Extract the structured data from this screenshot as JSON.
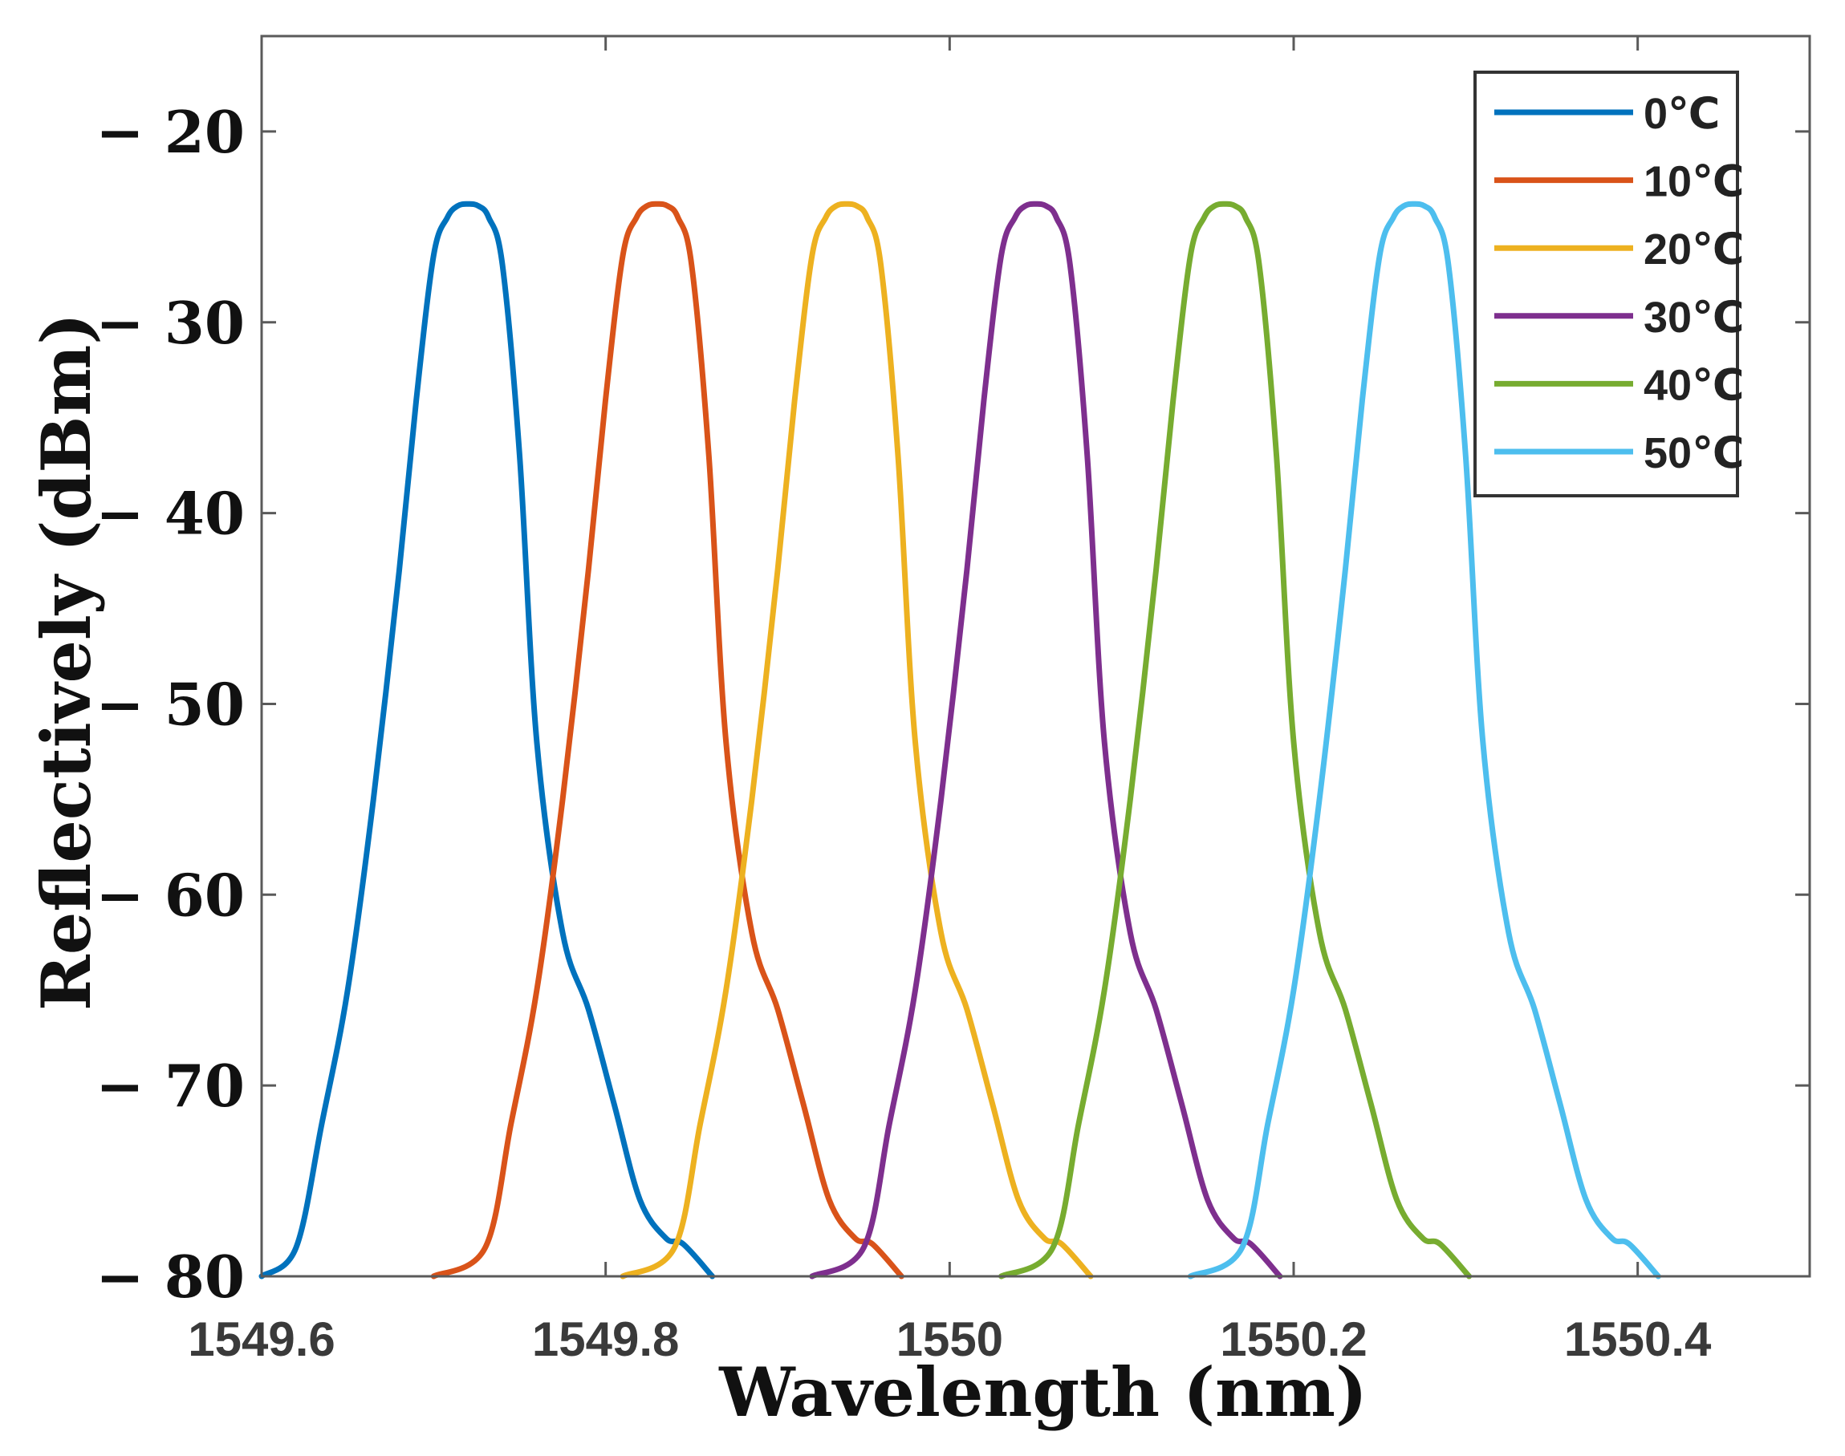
{
  "chart_data": {
    "type": "line",
    "title": "",
    "xlabel": "Wavelength (nm)",
    "ylabel": "Reflectively (dBm)",
    "xlim": [
      1549.6,
      1550.5
    ],
    "ylim": [
      -80,
      -15
    ],
    "xticks": [
      1549.6,
      1549.8,
      1550,
      1550.2,
      1550.4
    ],
    "xtick_labels": [
      "1549.6",
      "1549.8",
      "1550",
      "1550.2",
      "1550.4"
    ],
    "yticks": [
      -20,
      -30,
      -40,
      -50,
      -60,
      -70,
      -80
    ],
    "ytick_labels": [
      "− 20",
      "− 30",
      "− 40",
      "− 50",
      "− 60",
      "− 70",
      "− 80"
    ],
    "grid": false,
    "legend_position": "top-right",
    "peak_dbm": -23.8,
    "series": [
      {
        "name": "0℃",
        "color": "#0072BD",
        "peak_nm": 1549.72,
        "x_start": 1549.6,
        "x_end": 1549.862
      },
      {
        "name": "10℃",
        "color": "#D95319",
        "peak_nm": 1549.83,
        "x_start": 1549.7,
        "x_end": 1549.972
      },
      {
        "name": "20℃",
        "color": "#EDB120",
        "peak_nm": 1549.94,
        "x_start": 1549.81,
        "x_end": 1550.082
      },
      {
        "name": "30℃",
        "color": "#7E2F8E",
        "peak_nm": 1550.05,
        "x_start": 1549.92,
        "x_end": 1550.192
      },
      {
        "name": "40℃",
        "color": "#77AC30",
        "peak_nm": 1550.16,
        "x_start": 1550.03,
        "x_end": 1550.302
      },
      {
        "name": "50℃",
        "color": "#4DBEEE",
        "peak_nm": 1550.27,
        "x_start": 1550.14,
        "x_end": 1550.412
      }
    ],
    "profile_offsets_nm": [
      -0.12,
      -0.1,
      -0.085,
      -0.07,
      -0.055,
      -0.04,
      -0.03,
      -0.02,
      -0.012,
      -0.006,
      0,
      0.006,
      0.012,
      0.02,
      0.03,
      0.04,
      0.055,
      0.07,
      0.085,
      0.1,
      0.115,
      0.125,
      0.142
    ],
    "profile_dbm": [
      -80,
      -78.5,
      -72,
      -65,
      -55,
      -43,
      -34,
      -26.5,
      -24.5,
      -23.9,
      -23.8,
      -23.9,
      -24.5,
      -27,
      -37,
      -52,
      -62,
      -66,
      -71,
      -76,
      -78,
      -78.3,
      -80
    ]
  }
}
